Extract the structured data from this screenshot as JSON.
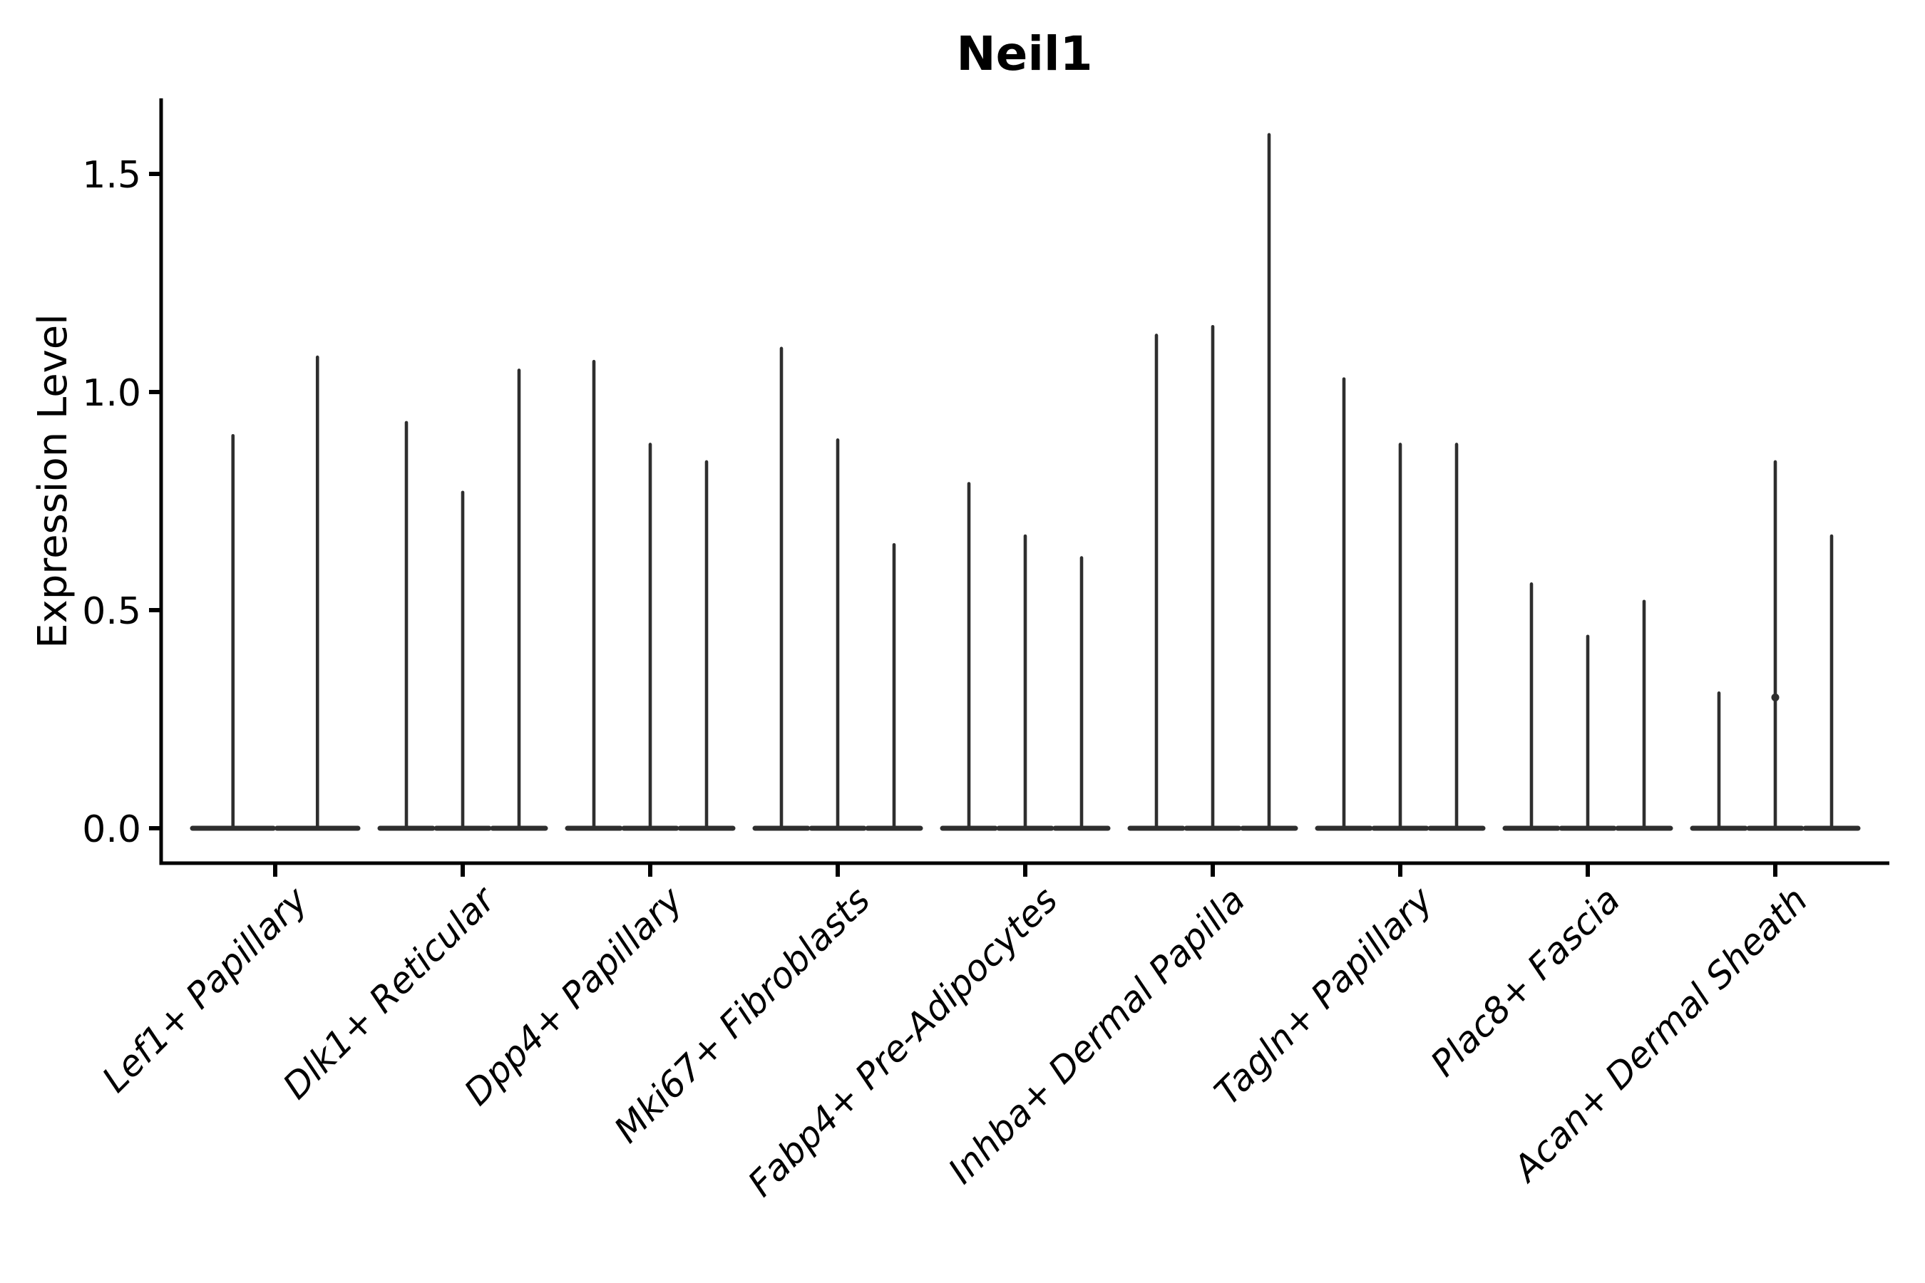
{
  "page": {
    "background_color": "#ffffff",
    "ink_color": "#000000",
    "violin_color": "#2e2e2e"
  },
  "chart": {
    "title": "Neil1",
    "ylabel": "Expression Level"
  },
  "chart_data": {
    "type": "violin",
    "title": "Neil1",
    "xlabel": "",
    "ylabel": "Expression Level",
    "ylim": [
      -0.08,
      1.67
    ],
    "yticks": [
      0.0,
      0.5,
      1.0,
      1.5
    ],
    "ytick_labels": [
      "0.0",
      "0.5",
      "1.0",
      "1.5"
    ],
    "grid": false,
    "legend": null,
    "orientation": "vertical",
    "description": "Very thin spike-shaped violins (sparse expression), each sitting on a wide flat base at y=0; 2-3 violins per cell-type category",
    "categories": [
      "Lef1+ Papillary",
      "Dlk1+ Reticular",
      "Dpp4+ Papillary",
      "Mki67+ Fibroblasts",
      "Fabp4+ Pre-Adipocytes",
      "Inhba+ Dermal Papilla",
      "Tagln+ Papillary",
      "Plac8+ Fascia",
      "Acan+ Dermal Sheath"
    ],
    "groups": [
      {
        "category": "Lef1+ Papillary",
        "violin_max_values": [
          0.9,
          1.08
        ]
      },
      {
        "category": "Dlk1+ Reticular",
        "violin_max_values": [
          0.93,
          0.77,
          1.05
        ]
      },
      {
        "category": "Dpp4+ Papillary",
        "violin_max_values": [
          1.07,
          0.88,
          0.84
        ]
      },
      {
        "category": "Mki67+ Fibroblasts",
        "violin_max_values": [
          1.1,
          0.89,
          0.65
        ]
      },
      {
        "category": "Fabp4+ Pre-Adipocytes",
        "violin_max_values": [
          0.79,
          0.67,
          0.62
        ]
      },
      {
        "category": "Inhba+ Dermal Papilla",
        "violin_max_values": [
          1.13,
          1.15,
          1.59
        ]
      },
      {
        "category": "Tagln+ Papillary",
        "violin_max_values": [
          1.03,
          0.88,
          0.88
        ]
      },
      {
        "category": "Plac8+ Fascia",
        "violin_max_values": [
          0.56,
          0.44,
          0.52
        ]
      },
      {
        "category": "Acan+ Dermal Sheath",
        "violin_max_values": [
          0.31,
          0.84,
          0.67
        ]
      }
    ],
    "annotations": [
      {
        "category": "Acan+ Dermal Sheath",
        "violin_index": 1,
        "bump_value": 0.3
      }
    ]
  }
}
